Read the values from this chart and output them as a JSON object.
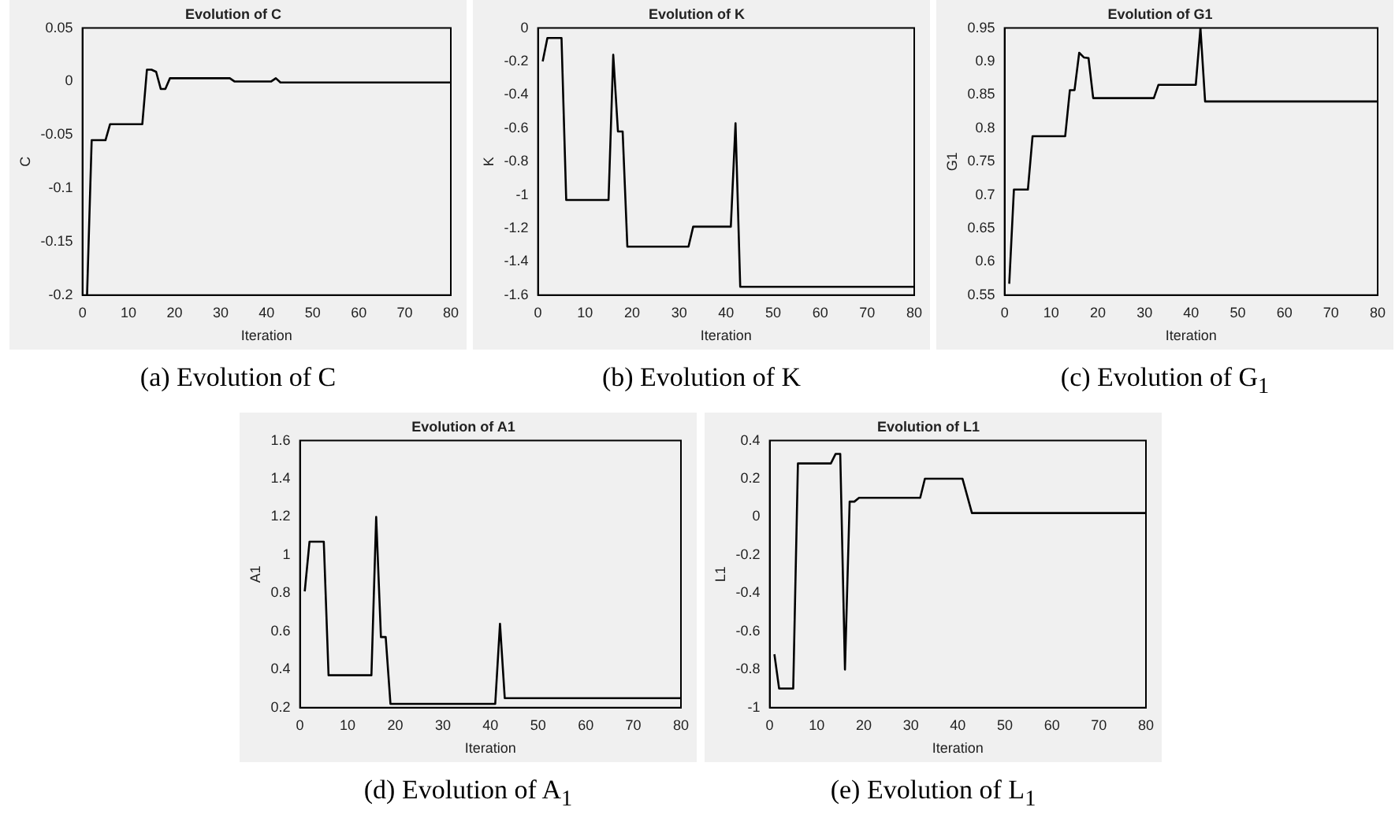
{
  "chart_data": [
    {
      "type": "line",
      "title": "Evolution of C",
      "xlabel": "Iteration",
      "ylabel": "C",
      "annotations": [
        "(a)  Evolution of C"
      ],
      "xlim": [
        0,
        80
      ],
      "xticks": [
        0,
        10,
        20,
        30,
        40,
        50,
        60,
        70,
        80
      ],
      "ylim": [
        -0.2,
        0.05
      ],
      "yticks": [
        -0.2,
        -0.15,
        -0.1,
        -0.05,
        0,
        0.05
      ],
      "grid": false,
      "legend": false,
      "marker": "none",
      "line_style": "solid",
      "series": [
        {
          "color": "#000000",
          "x": [
            1,
            2,
            5,
            6,
            13,
            14,
            15,
            16,
            17,
            18,
            19,
            32,
            33,
            41,
            42,
            43,
            80
          ],
          "values": [
            -0.2,
            -0.055,
            -0.055,
            -0.04,
            -0.04,
            0.011,
            0.011,
            0.009,
            -0.007,
            -0.007,
            0.003,
            0.003,
            0,
            0,
            0.003,
            -0.001,
            -0.001
          ]
        }
      ]
    },
    {
      "type": "line",
      "title": "Evolution of K",
      "xlabel": "Iteration",
      "ylabel": "K",
      "annotations": [
        "(b)  Evolution of K"
      ],
      "xlim": [
        0,
        80
      ],
      "xticks": [
        0,
        10,
        20,
        30,
        40,
        50,
        60,
        70,
        80
      ],
      "ylim": [
        -1.6,
        0
      ],
      "yticks": [
        -1.6,
        -1.4,
        -1.2,
        -1,
        -0.8,
        -0.6,
        -0.4,
        -0.2,
        0
      ],
      "grid": false,
      "legend": false,
      "marker": "none",
      "line_style": "solid",
      "series": [
        {
          "color": "#000000",
          "x": [
            1,
            2,
            5,
            6,
            15,
            16,
            17,
            18,
            19,
            32,
            33,
            41,
            42,
            43,
            80
          ],
          "values": [
            -0.2,
            -0.06,
            -0.06,
            -1.03,
            -1.03,
            -0.16,
            -0.62,
            -0.62,
            -1.31,
            -1.31,
            -1.19,
            -1.19,
            -0.57,
            -1.55,
            -1.55
          ]
        }
      ]
    },
    {
      "type": "line",
      "title": "Evolution of G1",
      "xlabel": "Iteration",
      "ylabel": "G1",
      "annotations": [
        "(c)  Evolution of G$_{1}$"
      ],
      "xlim": [
        0,
        80
      ],
      "xticks": [
        0,
        10,
        20,
        30,
        40,
        50,
        60,
        70,
        80
      ],
      "ylim": [
        0.55,
        0.95
      ],
      "yticks": [
        0.55,
        0.6,
        0.65,
        0.7,
        0.75,
        0.8,
        0.85,
        0.9,
        0.95
      ],
      "grid": false,
      "legend": false,
      "marker": "none",
      "line_style": "solid",
      "series": [
        {
          "color": "#000000",
          "x": [
            1,
            2,
            5,
            6,
            13,
            14,
            15,
            16,
            17,
            18,
            19,
            32,
            33,
            41,
            42,
            43,
            80
          ],
          "values": [
            0.567,
            0.708,
            0.708,
            0.788,
            0.788,
            0.857,
            0.857,
            0.913,
            0.906,
            0.905,
            0.845,
            0.845,
            0.865,
            0.865,
            0.95,
            0.84,
            0.84
          ]
        }
      ]
    },
    {
      "type": "line",
      "title": "Evolution of A1",
      "xlabel": "Iteration",
      "ylabel": "A1",
      "annotations": [
        "(d)  Evolution of A$_{1}$"
      ],
      "xlim": [
        0,
        80
      ],
      "xticks": [
        0,
        10,
        20,
        30,
        40,
        50,
        60,
        70,
        80
      ],
      "ylim": [
        0.2,
        1.6
      ],
      "yticks": [
        0.2,
        0.4,
        0.6,
        0.8,
        1,
        1.2,
        1.4,
        1.6
      ],
      "grid": false,
      "legend": false,
      "marker": "none",
      "line_style": "solid",
      "series": [
        {
          "color": "#000000",
          "x": [
            1,
            2,
            5,
            6,
            15,
            16,
            17,
            18,
            19,
            41,
            42,
            43,
            80
          ],
          "values": [
            0.81,
            1.07,
            1.07,
            0.37,
            0.37,
            1.2,
            0.57,
            0.57,
            0.22,
            0.22,
            0.64,
            0.25,
            0.25
          ]
        }
      ]
    },
    {
      "type": "line",
      "title": "Evolution of L1",
      "xlabel": "Iteration",
      "ylabel": "L1",
      "annotations": [
        "(e)  Evolution of L$_{1}$"
      ],
      "xlim": [
        0,
        80
      ],
      "xticks": [
        0,
        10,
        20,
        30,
        40,
        50,
        60,
        70,
        80
      ],
      "ylim": [
        -1,
        0.4
      ],
      "yticks": [
        -1,
        -0.8,
        -0.6,
        -0.4,
        -0.2,
        0,
        0.2,
        0.4
      ],
      "grid": false,
      "legend": false,
      "marker": "none",
      "line_style": "solid",
      "series": [
        {
          "color": "#000000",
          "x": [
            1,
            2,
            5,
            6,
            13,
            14,
            15,
            16,
            17,
            18,
            19,
            32,
            33,
            41,
            42,
            43,
            80
          ],
          "values": [
            -0.72,
            -0.9,
            -0.9,
            0.28,
            0.28,
            0.33,
            0.33,
            -0.8,
            0.08,
            0.08,
            0.1,
            0.1,
            0.2,
            0.2,
            0.11,
            0.02,
            0.02
          ]
        }
      ]
    }
  ]
}
